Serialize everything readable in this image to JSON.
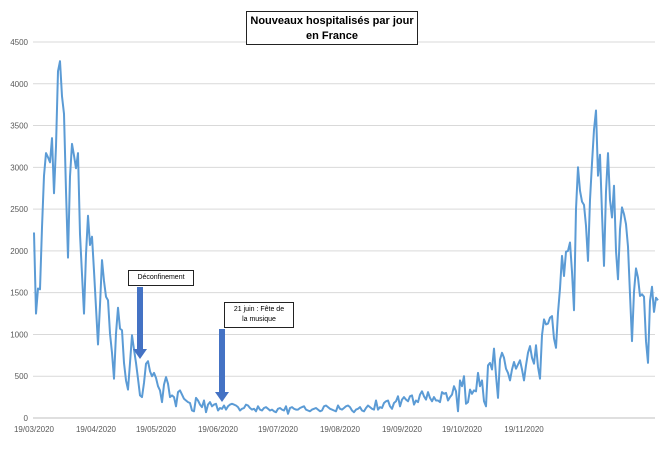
{
  "chart_data": {
    "type": "line",
    "title_lines": [
      "Nouveaux hospitalisés par jour",
      "en France"
    ],
    "xlabel": "",
    "ylabel": "",
    "ylim": [
      0,
      4500
    ],
    "y_ticks": [
      0,
      500,
      1000,
      1500,
      2000,
      2500,
      3000,
      3500,
      4000,
      4500
    ],
    "x_tick_labels": [
      "19/03/2020",
      "19/04/2020",
      "19/05/2020",
      "19/06/2020",
      "19/07/2020",
      "19/08/2020",
      "19/09/2020",
      "19/10/2020",
      "19/11/2020"
    ],
    "x_start": "2020-03-19",
    "grid": "horizontal",
    "line_color": "#5b9bd5",
    "arrow_color": "#4472c4",
    "series": [
      {
        "name": "",
        "values": [
          2220,
          1250,
          1550,
          1540,
          2280,
          2900,
          3170,
          3120,
          3060,
          3350,
          2690,
          3250,
          4150,
          4270,
          3850,
          3640,
          2720,
          1920,
          2890,
          3280,
          3140,
          2990,
          3170,
          2200,
          1720,
          1250,
          1960,
          2420,
          2070,
          2170,
          1760,
          1320,
          880,
          1350,
          1890,
          1640,
          1450,
          1410,
          1010,
          780,
          470,
          1010,
          1320,
          1070,
          1050,
          660,
          450,
          340,
          660,
          990,
          820,
          660,
          470,
          270,
          250,
          420,
          650,
          680,
          560,
          500,
          540,
          480,
          380,
          330,
          190,
          400,
          490,
          410,
          250,
          270,
          250,
          140,
          310,
          330,
          280,
          230,
          210,
          190,
          180,
          90,
          80,
          240,
          210,
          160,
          130,
          210,
          70,
          160,
          190,
          140,
          160,
          170,
          90,
          120,
          110,
          150,
          100,
          140,
          160,
          170,
          160,
          150,
          130,
          90,
          110,
          120,
          160,
          150,
          120,
          100,
          110,
          80,
          140,
          100,
          90,
          120,
          130,
          110,
          90,
          100,
          80,
          70,
          110,
          120,
          100,
          90,
          140,
          50,
          120,
          130,
          110,
          100,
          100,
          120,
          130,
          140,
          100,
          90,
          80,
          100,
          110,
          120,
          100,
          80,
          90,
          140,
          150,
          130,
          110,
          100,
          90,
          80,
          150,
          110,
          100,
          120,
          140,
          150,
          130,
          90,
          70,
          100,
          110,
          130,
          90,
          80,
          120,
          150,
          130,
          110,
          100,
          210,
          100,
          130,
          120,
          180,
          200,
          210,
          140,
          110,
          180,
          200,
          260,
          140,
          220,
          250,
          220,
          200,
          260,
          270,
          160,
          210,
          190,
          280,
          320,
          260,
          220,
          310,
          240,
          200,
          250,
          210,
          210,
          190,
          310,
          290,
          300,
          210,
          250,
          280,
          380,
          320,
          80,
          450,
          380,
          500,
          170,
          190,
          340,
          290,
          330,
          320,
          540,
          380,
          450,
          200,
          140,
          630,
          660,
          580,
          830,
          510,
          240,
          700,
          780,
          720,
          590,
          540,
          450,
          580,
          670,
          590,
          640,
          690,
          580,
          450,
          630,
          780,
          860,
          720,
          650,
          870,
          610,
          470,
          990,
          1180,
          1120,
          1130,
          1200,
          1220,
          950,
          840,
          1260,
          1550,
          1940,
          1700,
          1990,
          2000,
          2100,
          1750,
          1290,
          2500,
          3000,
          2720,
          2590,
          2550,
          2300,
          1880,
          2610,
          3050,
          3450,
          3680,
          2900,
          3150,
          2450,
          1820,
          2710,
          3170,
          2610,
          2400,
          2780,
          2000,
          1660,
          2260,
          2520,
          2440,
          2320,
          2050,
          1480,
          920,
          1510,
          1790,
          1680,
          1460,
          1480,
          1450,
          920,
          660,
          1400,
          1570,
          1270,
          1440,
          1410
        ]
      }
    ],
    "annotations": [
      {
        "lines": [
          "Déconfinement"
        ],
        "date": "2020-05-11"
      },
      {
        "lines": [
          "21 juin : Fête de",
          "la musique"
        ],
        "date": "2020-06-21"
      }
    ]
  }
}
